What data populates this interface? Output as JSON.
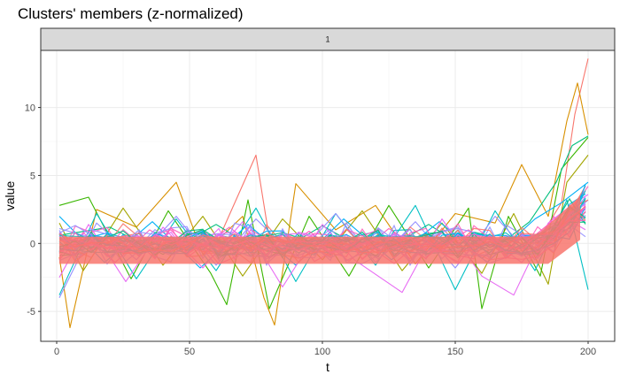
{
  "chart_data": {
    "type": "line",
    "title": "Clusters' members (z-normalized)",
    "facet_label": "1",
    "xlabel": "t",
    "ylabel": "value",
    "xlim": [
      -6,
      210
    ],
    "ylim": [
      -7.2,
      14.2
    ],
    "x_ticks": [
      0,
      50,
      100,
      150,
      200
    ],
    "y_ticks": [
      -5,
      0,
      5,
      10
    ],
    "x_tick_labels": [
      "0",
      "50",
      "100",
      "150",
      "200"
    ],
    "y_tick_labels": [
      "-5",
      "0",
      "5",
      "10"
    ],
    "grid": true,
    "legend": "none",
    "x_range": [
      1,
      200
    ],
    "series": [
      {
        "color": "#F8766D",
        "x": [
          1,
          15,
          30,
          45,
          60,
          75,
          80,
          90,
          105,
          120,
          135,
          150,
          165,
          175,
          183,
          190,
          195,
          200
        ],
        "values": [
          -0.2,
          0.1,
          -0.3,
          0.2,
          -0.1,
          6.5,
          0.4,
          -0.2,
          0.3,
          -0.1,
          0.2,
          0.1,
          -0.2,
          0.3,
          0.8,
          3.0,
          9.5,
          13.6
        ]
      },
      {
        "color": "#D89000",
        "x": [
          1,
          5,
          15,
          30,
          45,
          55,
          70,
          78,
          82,
          90,
          105,
          120,
          135,
          150,
          165,
          175,
          185,
          192,
          196,
          200
        ],
        "values": [
          -1.0,
          -6.2,
          2.5,
          1.2,
          4.5,
          -0.8,
          2.0,
          -4.0,
          -6.0,
          4.4,
          1.0,
          2.8,
          -1.5,
          2.2,
          1.5,
          5.8,
          2.0,
          9.0,
          11.8,
          8.0
        ]
      },
      {
        "color": "#A3A500",
        "x": [
          1,
          10,
          25,
          40,
          55,
          70,
          85,
          100,
          115,
          130,
          145,
          160,
          172,
          185,
          192,
          200
        ],
        "values": [
          1.5,
          -2.0,
          2.6,
          -1.6,
          2.0,
          -2.4,
          1.8,
          -1.2,
          2.4,
          -2.0,
          1.5,
          -2.2,
          2.2,
          -3.0,
          4.5,
          6.5
        ]
      },
      {
        "color": "#39B600",
        "x": [
          1,
          12,
          28,
          42,
          58,
          64,
          72,
          80,
          95,
          110,
          125,
          140,
          155,
          160,
          170,
          182,
          190,
          200
        ],
        "values": [
          2.8,
          3.4,
          -2.6,
          2.4,
          -2.2,
          -4.5,
          3.2,
          -4.8,
          2.0,
          -2.4,
          2.8,
          -1.8,
          2.6,
          -4.8,
          2.0,
          -2.4,
          5.5,
          7.8
        ]
      },
      {
        "color": "#00BF7D",
        "x": [
          1,
          20,
          40,
          60,
          80,
          100,
          120,
          140,
          160,
          178,
          188,
          194,
          200
        ],
        "values": [
          0.6,
          1.2,
          -0.8,
          1.4,
          -1.0,
          1.3,
          -0.9,
          1.4,
          -1.1,
          1.6,
          4.5,
          7.2,
          7.9
        ]
      },
      {
        "color": "#00BFC4",
        "x": [
          1,
          15,
          30,
          45,
          60,
          75,
          90,
          105,
          120,
          135,
          150,
          165,
          180,
          192,
          200
        ],
        "values": [
          -3.8,
          2.2,
          -2.6,
          1.8,
          -2.0,
          2.6,
          -2.8,
          2.2,
          -1.6,
          2.8,
          -3.4,
          2.4,
          -2.0,
          3.2,
          -3.4
        ]
      },
      {
        "color": "#00B0F6",
        "x": [
          1,
          18,
          36,
          54,
          72,
          90,
          108,
          126,
          144,
          162,
          180,
          190,
          200
        ],
        "values": [
          2.0,
          -1.4,
          1.6,
          -1.8,
          1.4,
          -1.6,
          1.8,
          -1.2,
          1.6,
          -1.4,
          1.8,
          3.0,
          4.5
        ]
      },
      {
        "color": "#9590FF",
        "x": [
          1,
          15,
          30,
          45,
          60,
          75,
          90,
          105,
          120,
          135,
          150,
          165,
          180,
          190,
          200
        ],
        "values": [
          -4.0,
          1.5,
          -1.2,
          2.0,
          -1.6,
          1.8,
          -1.0,
          2.2,
          -1.4,
          1.6,
          -1.8,
          2.0,
          -1.2,
          1.5,
          3.2
        ]
      },
      {
        "color": "#E76BF3",
        "x": [
          1,
          12,
          26,
          40,
          55,
          70,
          85,
          100,
          112,
          130,
          145,
          160,
          172,
          185,
          195,
          200
        ],
        "values": [
          -2.5,
          1.4,
          -2.8,
          1.2,
          -1.8,
          1.6,
          -3.2,
          1.4,
          -1.2,
          -3.6,
          1.8,
          -2.4,
          -3.8,
          1.5,
          3.0,
          3.6
        ]
      },
      {
        "color": "#FF62BC",
        "x": [
          1,
          10,
          22,
          35,
          50,
          65,
          80,
          95,
          110,
          125,
          140,
          155,
          170,
          185,
          195,
          200
        ],
        "values": [
          -1.2,
          0.8,
          -1.4,
          1.0,
          -0.9,
          1.2,
          -1.1,
          0.9,
          -1.3,
          1.1,
          -0.8,
          1.0,
          -1.0,
          1.4,
          2.8,
          4.2
        ]
      },
      {
        "color": "#F8766D",
        "x": [
          1,
          25,
          50,
          75,
          100,
          125,
          150,
          170,
          180,
          186,
          192,
          196,
          200
        ],
        "values": [
          -0.4,
          0.2,
          -0.3,
          0.3,
          -0.2,
          0.2,
          -0.3,
          0.4,
          0.6,
          1.2,
          2.0,
          2.8,
          3.2
        ]
      }
    ]
  }
}
